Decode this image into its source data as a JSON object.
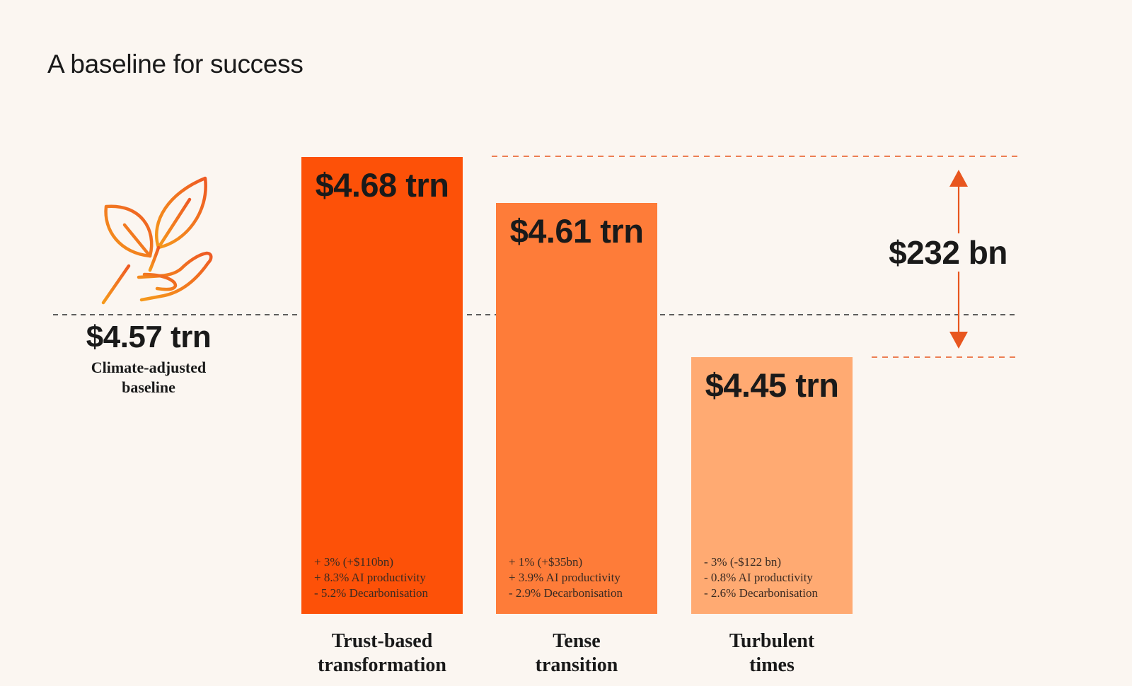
{
  "colors": {
    "background": "#FBF6F1",
    "bar_1": "#FD5108",
    "bar_2": "#FE7C39",
    "bar_3": "#FFAA72",
    "accent": "#E8561F",
    "icon_gradient_start": "#F59A1C",
    "icon_gradient_end": "#EE5A24"
  },
  "icon": {
    "name": "plant-in-hand-icon"
  },
  "chart_data": {
    "type": "bar",
    "title": "A baseline for success",
    "unit": "trn",
    "ylim": [
      0,
      4.9
    ],
    "categories": [
      "Trust-based transformation",
      "Tense transition",
      "Turbulent times"
    ],
    "category_lines": [
      [
        "Trust-based",
        "transformation"
      ],
      [
        "Tense",
        "transition"
      ],
      [
        "Turbulent",
        "times"
      ]
    ],
    "values": [
      4.68,
      4.61,
      4.45
    ],
    "value_labels": [
      "$4.68 trn",
      "$4.61 trn",
      "$4.45 trn"
    ],
    "notes": [
      [
        "+ 3% (+$110bn)",
        "+ 8.3% AI productivity",
        "- 5.2% Decarbonisation"
      ],
      [
        "+ 1% (+$35bn)",
        "+ 3.9% AI productivity",
        "- 2.9% Decarbonisation"
      ],
      [
        "- 3% (-$122 bn)",
        "- 0.8% AI productivity",
        "- 2.6% Decarbonisation"
      ]
    ],
    "baseline": {
      "value": 4.57,
      "value_label": "$4.57 trn",
      "label_lines": [
        "Climate-adjusted",
        "baseline"
      ]
    },
    "spread": {
      "value_bn": 232,
      "label": "$232 bn"
    }
  }
}
